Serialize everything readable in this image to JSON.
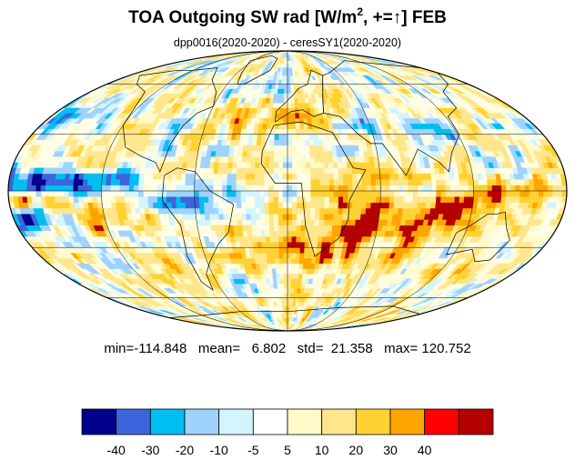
{
  "title": {
    "pre": "TOA Outgoing SW rad [W/m",
    "sup": "2",
    "post": ", +=↑] FEB"
  },
  "subtitle": "dpp0016(2020-2020) - ceresSY1(2020-2020)",
  "stats": "min=-114.848   mean=   6.802   std=  21.358   max= 120.752",
  "colorbar": {
    "colors": [
      "#00008c",
      "#3c64dc",
      "#00bef0",
      "#a0d2ff",
      "#d2f5ff",
      "#ffffff",
      "#fffac8",
      "#ffe68c",
      "#ffd232",
      "#ffa500",
      "#ff0000",
      "#b40000"
    ],
    "labels": [
      "-40",
      "-30",
      "-20",
      "-10",
      "-5",
      "5",
      "10",
      "20",
      "30",
      "40"
    ]
  },
  "map": {
    "projection": "mollweide",
    "field": "difference of TOA outgoing shortwave radiation",
    "grid_lines": true
  }
}
